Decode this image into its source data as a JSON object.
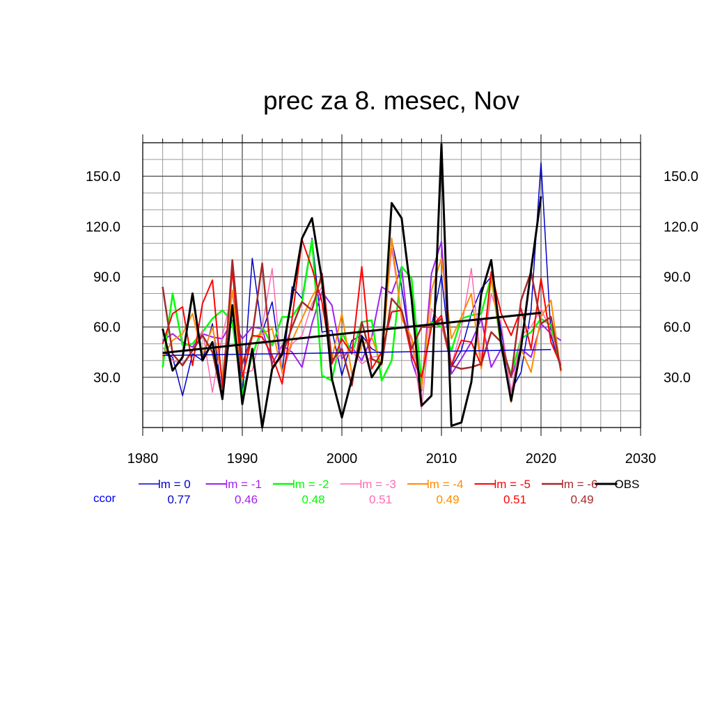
{
  "chart_data": {
    "type": "line",
    "title": "prec za 8. mesec, Nov",
    "xlabel": "",
    "ylabel": "",
    "xlim": [
      1980,
      2030
    ],
    "ylim": [
      0,
      170
    ],
    "x_ticks": [
      "1980",
      "1990",
      "2000",
      "2010",
      "2020",
      "2030"
    ],
    "y_ticks": [
      "30.0",
      "60.0",
      "90.0",
      "120.0",
      "150.0"
    ],
    "y_tick_values": [
      30,
      60,
      90,
      120,
      150
    ],
    "grid": true,
    "legend_position": "bottom",
    "ccor_label": "ccor",
    "years_model": [
      1982,
      1983,
      1984,
      1985,
      1986,
      1987,
      1988,
      1989,
      1990,
      1991,
      1992,
      1993,
      1994,
      1995,
      1996,
      1997,
      1998,
      1999,
      2000,
      2001,
      2002,
      2003,
      2004,
      2005,
      2006,
      2007,
      2008,
      2009,
      2010,
      2011,
      2012,
      2013,
      2014,
      2015,
      2016,
      2017,
      2018,
      2019,
      2020,
      2021,
      2022
    ],
    "series": [
      {
        "name": "lm = 0",
        "color": "#0000cc",
        "ccor": "0.77",
        "width": 1.5,
        "values": [
          45,
          42,
          19,
          44,
          40,
          62,
          18,
          95,
          18,
          101,
          57,
          75,
          33,
          84,
          77,
          113,
          57,
          58,
          31,
          52,
          55,
          47,
          44,
          112,
          84,
          44,
          28,
          60,
          91,
          36,
          46,
          68,
          83,
          90,
          58,
          22,
          33,
          70,
          158,
          55,
          35
        ]
      },
      {
        "name": "lm = -1",
        "color": "#a020f0",
        "ccor": "0.46",
        "width": 2,
        "values": [
          52,
          56,
          51,
          48,
          56,
          54,
          53,
          64,
          53,
          60,
          59,
          38,
          49,
          45,
          36,
          62,
          81,
          73,
          41,
          48,
          40,
          54,
          84,
          80,
          96,
          40,
          22,
          92,
          111,
          32,
          41,
          51,
          65,
          36,
          47,
          30,
          47,
          42,
          62,
          56,
          52
        ]
      },
      {
        "name": "lm = -2",
        "color": "#00ff00",
        "ccor": "0.48",
        "width": 2.5,
        "values": [
          36,
          80,
          49,
          50,
          57,
          65,
          70,
          63,
          20,
          43,
          60,
          49,
          66,
          66,
          75,
          112,
          31,
          28,
          57,
          44,
          63,
          64,
          28,
          40,
          96,
          89,
          27,
          63,
          60,
          46,
          65,
          67,
          68,
          90,
          48,
          32,
          53,
          57,
          65,
          61,
          35
        ]
      },
      {
        "name": "lm = -3",
        "color": "#ff69b4",
        "ccor": "0.51",
        "width": 1.5,
        "values": [
          48,
          40,
          38,
          46,
          58,
          21,
          55,
          80,
          32,
          34,
          60,
          95,
          32,
          50,
          55,
          74,
          84,
          39,
          44,
          46,
          38,
          42,
          43,
          107,
          67,
          52,
          11,
          71,
          61,
          37,
          59,
          95,
          38,
          80,
          62,
          21,
          55,
          60,
          71,
          57,
          38
        ]
      },
      {
        "name": "lm = -4",
        "color": "#ff8c00",
        "ccor": "0.49",
        "width": 2,
        "values": [
          42,
          52,
          56,
          68,
          43,
          60,
          30,
          82,
          29,
          54,
          56,
          59,
          33,
          52,
          65,
          78,
          88,
          41,
          68,
          32,
          49,
          54,
          37,
          113,
          65,
          54,
          23,
          82,
          101,
          53,
          66,
          80,
          35,
          90,
          49,
          15,
          47,
          33,
          66,
          76,
          33
        ]
      },
      {
        "name": "lm = -5",
        "color": "#ff0000",
        "ccor": "0.51",
        "width": 2,
        "values": [
          50,
          68,
          72,
          37,
          74,
          88,
          24,
          94,
          30,
          55,
          54,
          43,
          26,
          65,
          112,
          95,
          75,
          38,
          53,
          44,
          96,
          35,
          45,
          69,
          70,
          43,
          30,
          60,
          67,
          37,
          52,
          51,
          37,
          93,
          68,
          55,
          71,
          47,
          89,
          51,
          37
        ]
      },
      {
        "name": "lm = -6",
        "color": "#a52a2a",
        "ccor": "0.49",
        "width": 2.5,
        "values": [
          84,
          44,
          37,
          46,
          55,
          45,
          17,
          100,
          38,
          55,
          98,
          36,
          43,
          60,
          75,
          70,
          92,
          40,
          47,
          25,
          63,
          41,
          38,
          77,
          70,
          47,
          60,
          60,
          65,
          37,
          35,
          36,
          38,
          57,
          51,
          30,
          76,
          93,
          62,
          66,
          34
        ]
      }
    ],
    "observed": {
      "name": "OBS",
      "color": "#000000",
      "width": 3,
      "years": [
        1982,
        1983,
        1984,
        1985,
        1986,
        1987,
        1988,
        1989,
        1990,
        1991,
        1992,
        1993,
        1994,
        1995,
        1996,
        1997,
        1998,
        1999,
        2000,
        2001,
        2002,
        2003,
        2004,
        2005,
        2006,
        2007,
        2008,
        2009,
        2010,
        2011,
        2012,
        2013,
        2014,
        2015,
        2016,
        2017,
        2018,
        2019,
        2020
      ],
      "values": [
        59,
        34,
        42,
        80,
        40,
        51,
        17,
        73,
        14,
        47,
        0,
        35,
        44,
        78,
        113,
        125,
        88,
        29,
        6,
        29,
        54,
        30,
        39,
        134,
        125,
        77,
        13,
        19,
        169,
        1,
        3,
        27,
        80,
        100,
        50,
        16,
        48,
        94,
        138
      ]
    },
    "trendlines": [
      {
        "series": "lm = 0",
        "color": "#0000cc",
        "width": 1.5,
        "x": [
          1982,
          2021
        ],
        "y": [
          43,
          46.5
        ]
      },
      {
        "series": "OBS",
        "color": "#000000",
        "width": 3,
        "x": [
          1982,
          2020
        ],
        "y": [
          44.5,
          68.5
        ]
      }
    ]
  }
}
